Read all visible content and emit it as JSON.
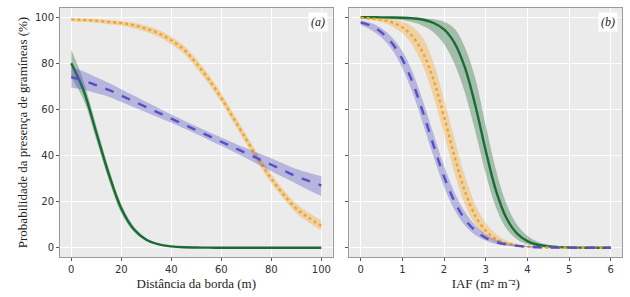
{
  "chart_data": [
    {
      "type": "line",
      "xlabel": "Distância da borda (m)",
      "ylabel": "Probabilidade da presença de gramíneas (%)",
      "annotations": [
        "(a)"
      ],
      "grid": true,
      "tick_labels": true,
      "xlim": [
        -4.5,
        104.5
      ],
      "xticks": [
        0,
        20,
        40,
        60,
        80,
        100
      ],
      "ylim": [
        -4,
        104
      ],
      "yticks": [
        0,
        20,
        40,
        60,
        80,
        100
      ],
      "x": [
        0,
        5,
        10,
        15,
        20,
        25,
        30,
        35,
        40,
        45,
        50,
        55,
        60,
        65,
        70,
        75,
        80,
        85,
        90,
        95,
        100
      ],
      "series": [
        {
          "color": "#1b6b34",
          "line_style": "solid",
          "values": [
            80,
            68,
            50,
            32,
            17,
            8,
            3.5,
            1.5,
            0.6,
            0.2,
            0.1,
            0.05,
            0,
            0,
            0,
            0,
            0,
            0,
            0,
            0,
            0
          ],
          "lower": [
            74,
            64,
            47,
            29.5,
            15,
            7,
            3,
            1.2,
            0.45,
            0.15,
            0.06,
            0.02,
            0,
            0,
            0,
            0,
            0,
            0,
            0,
            0,
            0
          ],
          "upper": [
            86,
            72,
            53,
            34.5,
            19,
            9.3,
            4.2,
            1.9,
            0.8,
            0.3,
            0.14,
            0.07,
            0.02,
            0.01,
            0,
            0,
            0,
            0,
            0,
            0,
            0
          ]
        },
        {
          "color": "#f0a428",
          "line_style": "dot",
          "values": [
            99,
            98.8,
            98.5,
            98,
            97.5,
            96.5,
            95,
            93,
            90,
            86,
            80,
            73,
            65,
            56,
            47,
            38,
            30,
            23,
            17,
            13,
            9.5
          ],
          "lower": [
            98.3,
            98,
            97.6,
            97,
            96.4,
            95.2,
            93.6,
            91.4,
            88.3,
            84.2,
            78,
            71,
            63,
            54,
            45,
            36,
            28,
            21,
            15,
            11,
            7.5
          ],
          "upper": [
            99.5,
            99.4,
            99.2,
            98.8,
            98.4,
            97.6,
            96.3,
            94.5,
            91.6,
            87.7,
            82,
            75,
            67,
            58,
            49,
            40,
            32,
            25,
            19.2,
            15.2,
            12
          ]
        },
        {
          "color": "#5550c4",
          "line_style": "dash",
          "values": [
            74,
            72.5,
            70.5,
            68.5,
            66,
            63.5,
            61,
            58.5,
            56,
            53.5,
            51,
            48.5,
            46,
            43.5,
            41,
            38.5,
            36,
            33.5,
            31,
            29,
            27
          ],
          "lower": [
            69.5,
            68.5,
            67,
            65.5,
            63.2,
            61,
            58.8,
            56.5,
            54.2,
            51.8,
            49.3,
            46.8,
            44.2,
            41.5,
            38.8,
            36,
            33.2,
            30.5,
            27.8,
            25,
            22.5
          ],
          "upper": [
            78.5,
            76.5,
            74,
            71.5,
            68.8,
            66,
            63.2,
            60.5,
            57.8,
            55.2,
            52.7,
            50.2,
            47.8,
            45.5,
            43.2,
            41,
            38.8,
            36.5,
            34.2,
            32.5,
            31
          ]
        }
      ]
    },
    {
      "type": "line",
      "xlabel": "IAF (m² m⁻²)",
      "annotations": [
        "(b)"
      ],
      "grid": true,
      "tick_labels": "x",
      "xlim": [
        -0.27,
        6.27
      ],
      "xticks": [
        0,
        1,
        2,
        3,
        4,
        5,
        6
      ],
      "ylim": [
        -4,
        104
      ],
      "yticks": [
        0,
        20,
        40,
        60,
        80,
        100
      ],
      "x": [
        0,
        0.25,
        0.5,
        0.75,
        1,
        1.25,
        1.5,
        1.75,
        2,
        2.25,
        2.5,
        2.75,
        3,
        3.25,
        3.5,
        3.75,
        4,
        4.25,
        4.5,
        4.75,
        5,
        5.25,
        5.5,
        5.75,
        6
      ],
      "series": [
        {
          "color": "#1b6b34",
          "line_style": "solid",
          "values": [
            100,
            99.98,
            99.95,
            99.9,
            99.8,
            99.5,
            98.9,
            97.5,
            94.7,
            88.9,
            78.2,
            61.8,
            42.1,
            24.6,
            12.8,
            6.2,
            2.9,
            1.3,
            0.6,
            0.3,
            0.1,
            0.05,
            0.02,
            0.01,
            0
          ],
          "lower": [
            99.5,
            99.4,
            99.3,
            99.1,
            98.7,
            97.8,
            96.2,
            93.4,
            88.4,
            79.8,
            67.2,
            50.4,
            32.1,
            17.3,
            8.2,
            3.6,
            1.5,
            0.6,
            0.2,
            0.1,
            0,
            0,
            0,
            0,
            0
          ],
          "upper": [
            100,
            100,
            100,
            100,
            99.95,
            99.85,
            99.6,
            99.1,
            98,
            95.1,
            87,
            73.5,
            53.1,
            33.5,
            18.9,
            10.1,
            5.2,
            2.6,
            1.3,
            0.7,
            0.3,
            0.15,
            0.06,
            0.03,
            0.01
          ]
        },
        {
          "color": "#f0a428",
          "line_style": "dot",
          "values": [
            99.7,
            99.4,
            98.9,
            97.8,
            95.6,
            91.5,
            84.3,
            72.7,
            56.9,
            39.7,
            24.6,
            13.9,
            7.4,
            3.8,
            1.9,
            1.0,
            0.5,
            0.24,
            0.12,
            0.06,
            0.03,
            0.01,
            0,
            0,
            0
          ],
          "lower": [
            99.3,
            98.8,
            97.9,
            96.1,
            93,
            87.5,
            78.5,
            65.4,
            49.2,
            32.4,
            18.8,
            10,
            4.9,
            2.3,
            1.1,
            0.5,
            0.2,
            0.1,
            0.04,
            0.02,
            0.01,
            0,
            0,
            0,
            0
          ],
          "upper": [
            99.9,
            99.75,
            99.5,
            99,
            98,
            95.8,
            90.8,
            80.3,
            64.4,
            47.3,
            31.2,
            18.9,
            10.8,
            6,
            3.2,
            1.8,
            0.9,
            0.5,
            0.25,
            0.13,
            0.07,
            0.03,
            0.01,
            0.01,
            0
          ]
        },
        {
          "color": "#5550c4",
          "line_style": "dash",
          "values": [
            97.8,
            96.2,
            93.4,
            88.8,
            81.7,
            71.5,
            58.5,
            44.3,
            30.9,
            20.1,
            12.4,
            7.4,
            4.3,
            2.5,
            1.4,
            0.8,
            0.45,
            0.25,
            0.14,
            0.08,
            0.05,
            0.03,
            0.02,
            0.01,
            0
          ],
          "lower": [
            96.5,
            94.5,
            91.2,
            86,
            78,
            67,
            53.5,
            39.5,
            26.5,
            16.5,
            9.7,
            5.5,
            3,
            1.6,
            0.9,
            0.5,
            0.25,
            0.13,
            0.07,
            0.04,
            0.02,
            0.01,
            0.01,
            0,
            0
          ],
          "upper": [
            98.7,
            97.5,
            95.2,
            91.3,
            85.2,
            76,
            63.3,
            49.2,
            35.5,
            24.1,
            15.6,
            9.7,
            5.9,
            3.6,
            2.2,
            1.3,
            0.75,
            0.45,
            0.26,
            0.15,
            0.09,
            0.05,
            0.03,
            0.02,
            0.01
          ]
        }
      ]
    }
  ]
}
